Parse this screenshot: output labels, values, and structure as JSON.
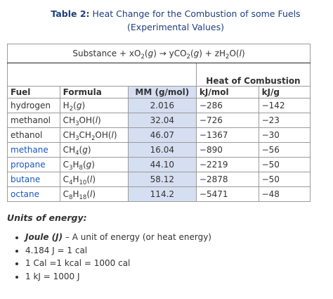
{
  "caption": {
    "label": "Table 2:",
    "title": "Heat Change for the Combustion of some Fuels",
    "subtitle": "(Experimental Values)"
  },
  "table": {
    "equation": "Substance + xO2(g) → yCO2(g) + zH2O(l)",
    "group_header": "Heat of Combustion",
    "columns": [
      "Fuel",
      "Formula",
      "MM (g/mol)",
      "kJ/mol",
      "kJ/g"
    ],
    "rows": [
      [
        "hydrogen",
        "H2(g)",
        "2.016",
        "−286",
        "−142"
      ],
      [
        "methanol",
        "CH3OH(l)",
        "32.04",
        "−726",
        "−23"
      ],
      [
        "ethanol",
        "CH3CH2OH(l)",
        "46.07",
        "−1367",
        "−30"
      ],
      [
        "methane",
        "CH4(g)",
        "16.04",
        "−890",
        "−56"
      ],
      [
        "propane",
        "C3H8(g)",
        "44.10",
        "−2219",
        "−50"
      ],
      [
        "butane",
        "C4H10(l)",
        "58.12",
        "−2878",
        "−50"
      ],
      [
        "octane",
        "C8H18(l)",
        "114.2",
        "−5471",
        "−48"
      ]
    ]
  },
  "units": {
    "heading": "Units of energy:",
    "items": [
      {
        "term": "Joule (J)",
        "text": " – A unit of energy (or heat energy)"
      },
      {
        "text": "4.184 J = 1 cal"
      },
      {
        "text": "1 Cal =1 kcal = 1000 cal"
      },
      {
        "text": "1 kJ = 1000 J"
      }
    ]
  }
}
